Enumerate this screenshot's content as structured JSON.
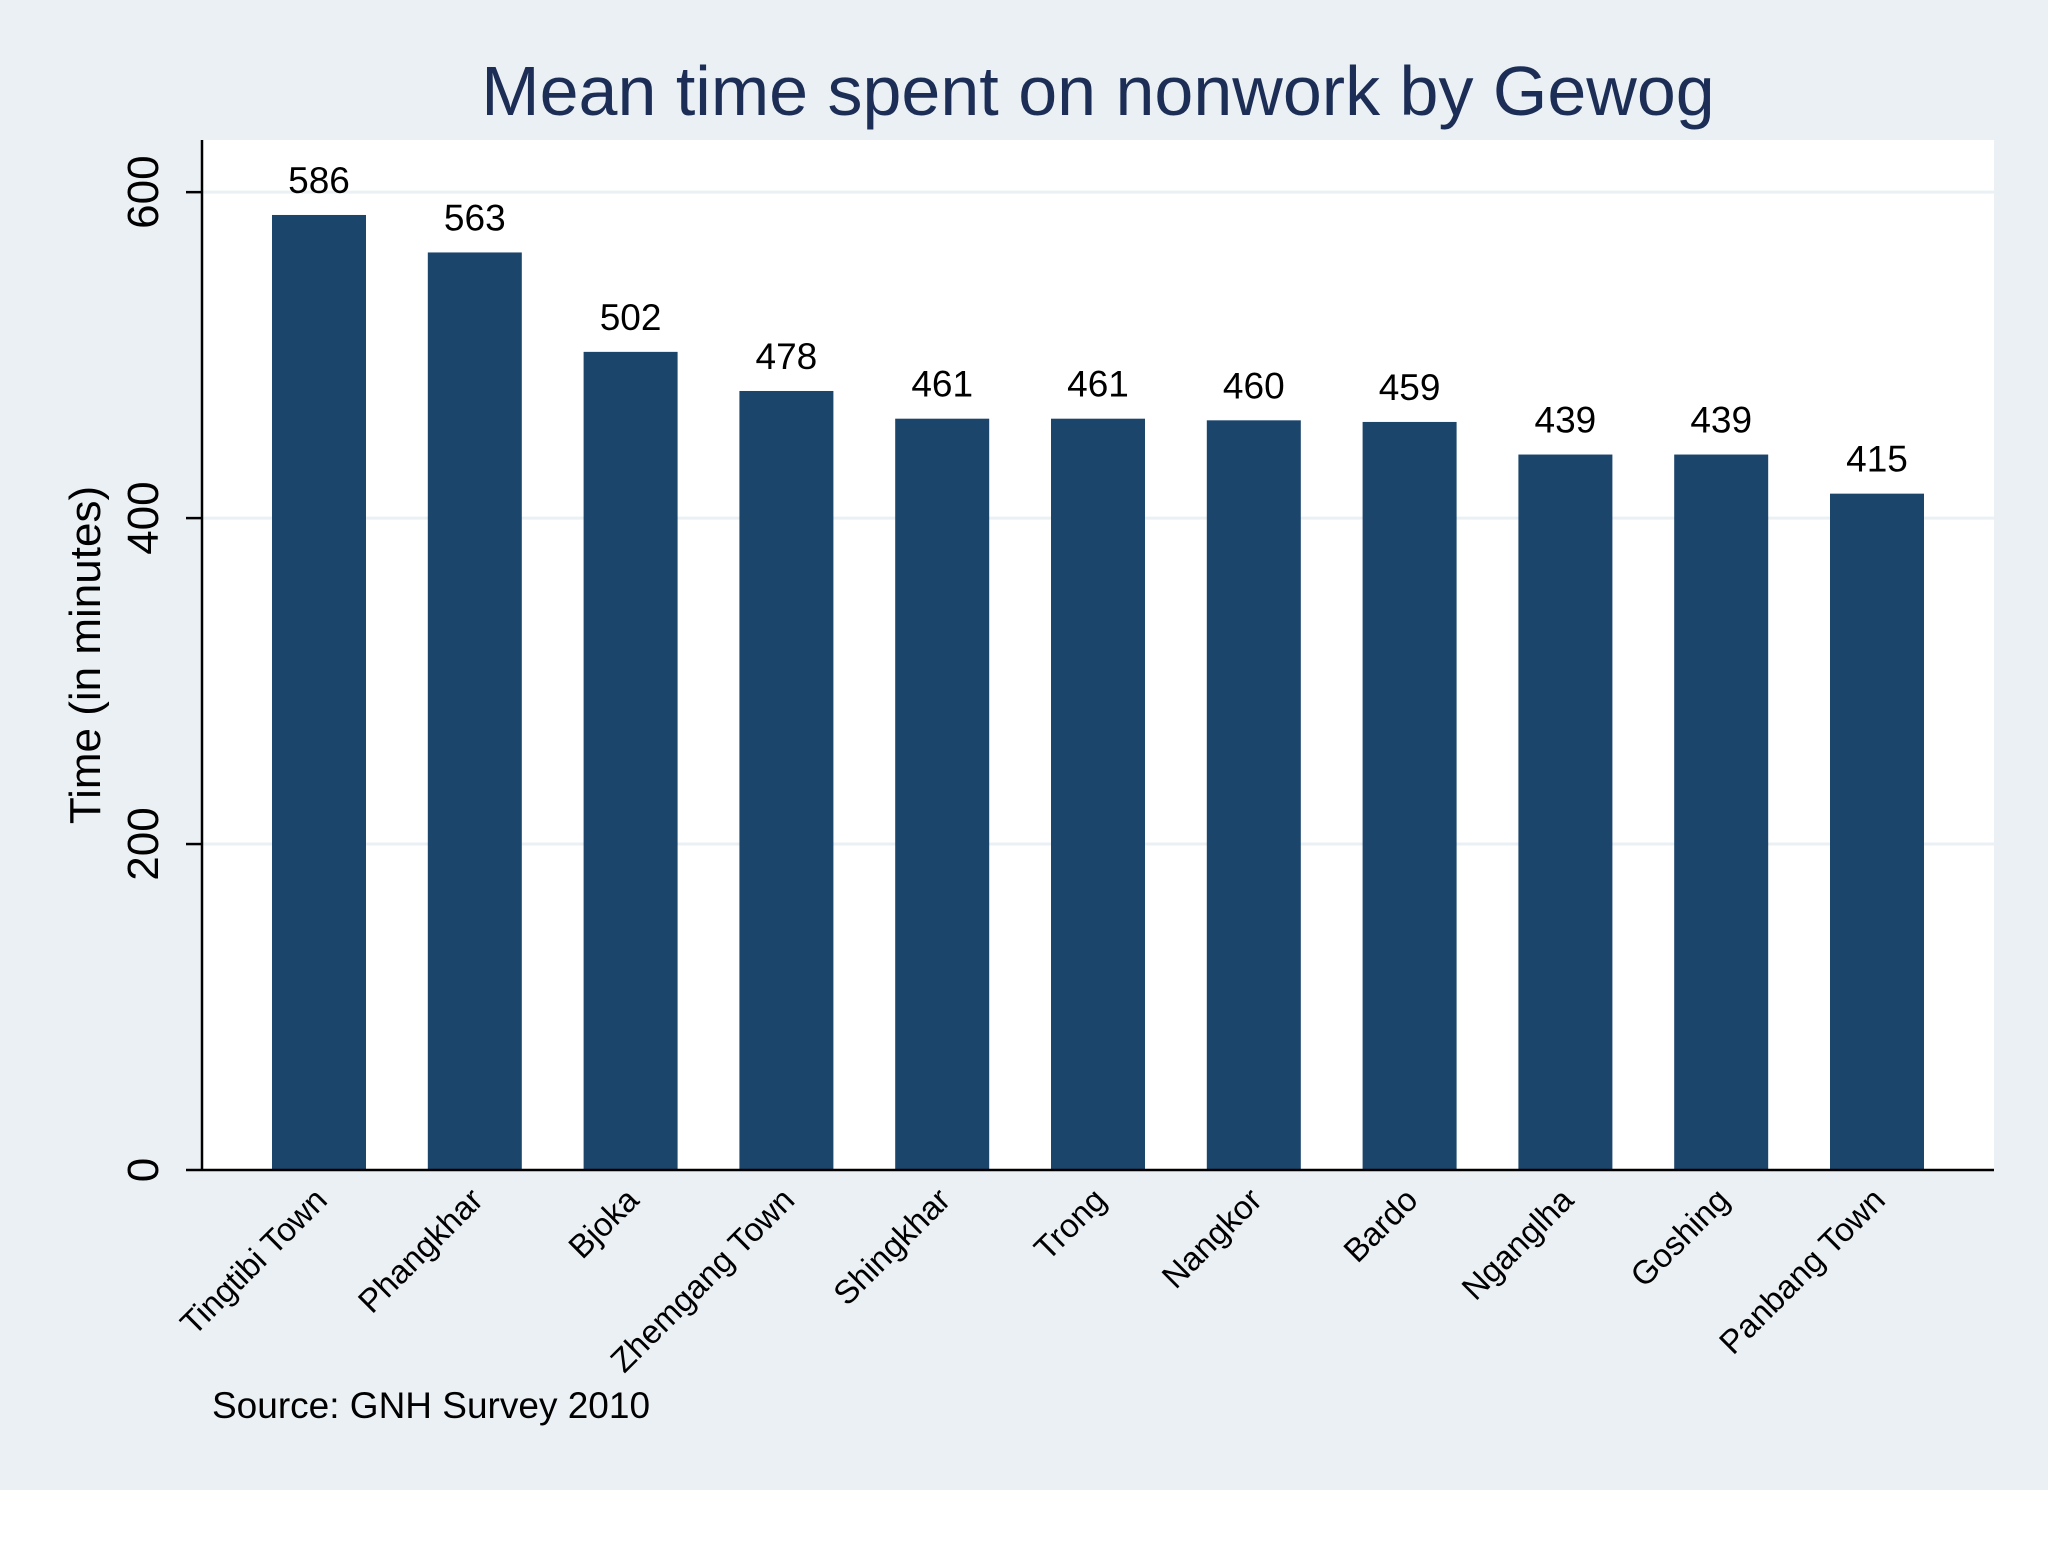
{
  "chart_data": {
    "type": "bar",
    "title": "Mean time spent on nonwork by Gewog",
    "xlabel": "",
    "ylabel": "Time (in minutes)",
    "note": "Source: GNH Survey 2010",
    "categories": [
      "Tingtibi Town",
      "Phangkhar",
      "Bjoka",
      "Zhemgang Town",
      "Shingkhar",
      "Trong",
      "Nangkor",
      "Bardo",
      "Nganglha",
      "Goshing",
      "Panbang Town"
    ],
    "values": [
      586,
      563,
      502,
      478,
      461,
      461,
      460,
      459,
      439,
      439,
      415
    ],
    "ylim": [
      0,
      632
    ],
    "yticks": [
      0,
      200,
      400,
      600
    ],
    "grid": true,
    "legend": "none",
    "colors": {
      "bar": "#1c456b",
      "title": "#1c2e56",
      "background": "#eaf0f4",
      "plot_area": "#ffffff",
      "gridline": "#eaf0f4",
      "axis": "#000000",
      "text": "#000000"
    }
  }
}
